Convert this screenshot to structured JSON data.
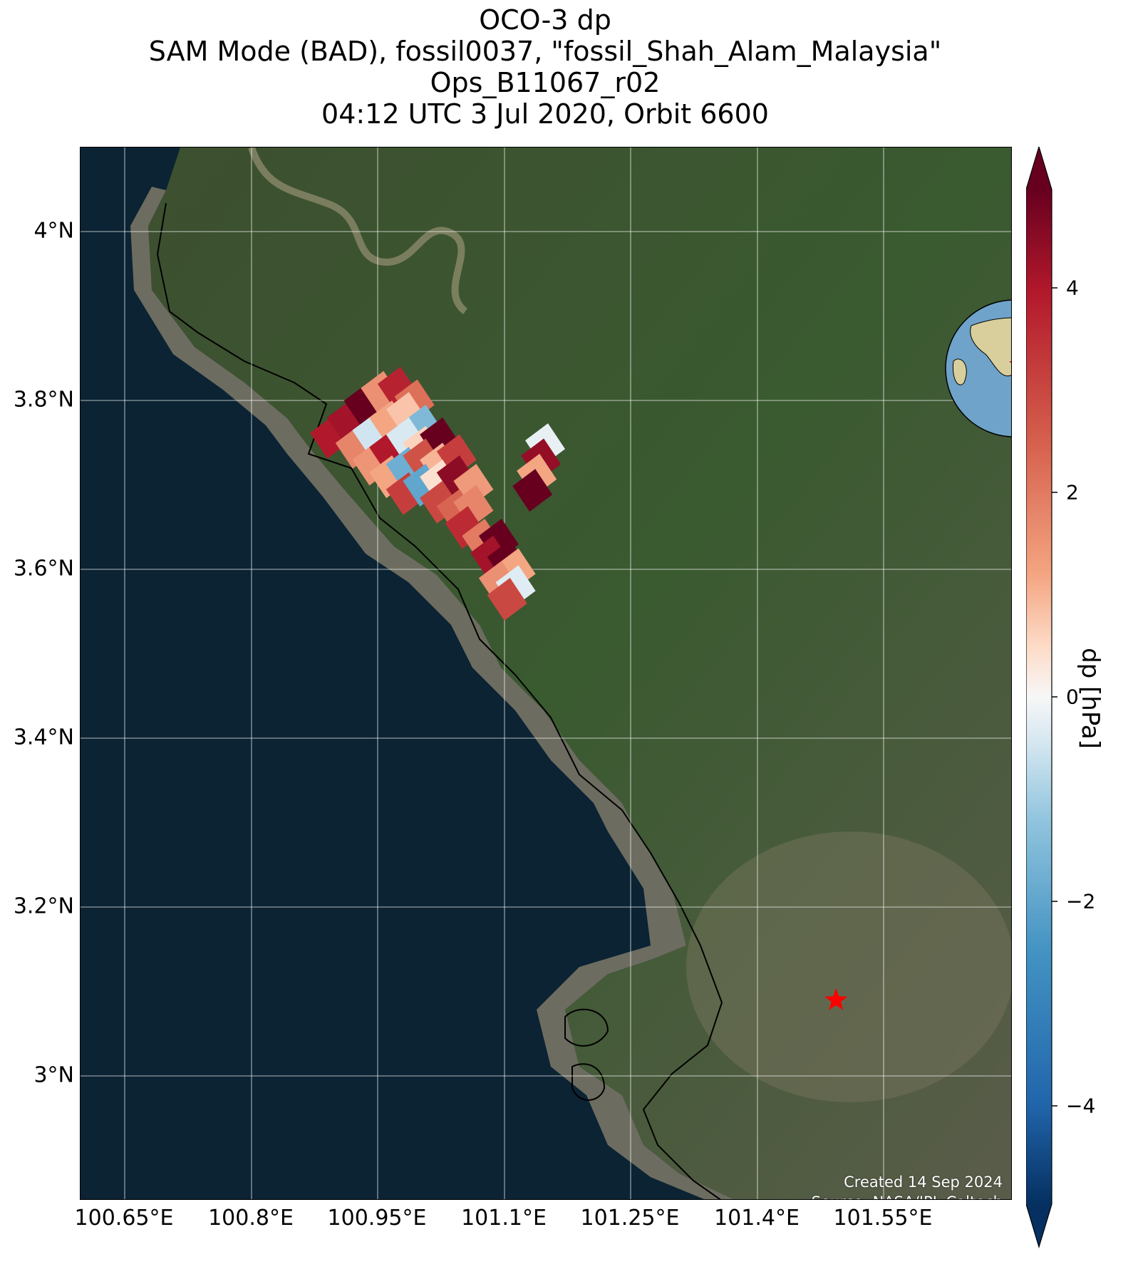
{
  "title": {
    "line1": "OCO-3 dp",
    "line2": "SAM Mode (BAD), fossil0037, \"fossil_Shah_Alam_Malaysia\"",
    "line3": "Ops_B11067_r02",
    "line4": "04:12 UTC 3 Jul 2020, Orbit 6600"
  },
  "map": {
    "lat_ticks": [
      "4°N",
      "3.8°N",
      "3.6°N",
      "3.4°N",
      "3.2°N",
      "3°N"
    ],
    "lon_ticks": [
      "100.65°E",
      "100.8°E",
      "100.95°E",
      "101.1°E",
      "101.25°E",
      "101.4°E",
      "101.55°E"
    ],
    "credit_created": "Created 14 Sep 2024",
    "credit_source": "Source: NASA/JPL-Caltech",
    "target_marker": "red-star",
    "target_location": {
      "lon": 101.49,
      "lat": 3.09
    }
  },
  "colorbar": {
    "label": "dp [hPa]",
    "ticks": [
      "4",
      "2",
      "0",
      "−2",
      "−4"
    ],
    "range": [
      -5,
      5
    ],
    "colormap": "RdBu_r",
    "extend": "both"
  },
  "colors": {
    "ocean": "#0b2333",
    "land": "#3c5230",
    "sediment": "#a89478",
    "target_star": "#ff0000"
  },
  "footprints": [
    {
      "lon": 100.89,
      "lat": 3.757,
      "dp": 4.0
    },
    {
      "lon": 100.91,
      "lat": 3.775,
      "dp": 4.2
    },
    {
      "lon": 100.93,
      "lat": 3.795,
      "dp": 5.0
    },
    {
      "lon": 100.95,
      "lat": 3.81,
      "dp": 1.6
    },
    {
      "lon": 100.97,
      "lat": 3.815,
      "dp": 3.8
    },
    {
      "lon": 100.99,
      "lat": 3.8,
      "dp": 2.2
    },
    {
      "lon": 100.92,
      "lat": 3.745,
      "dp": 1.8
    },
    {
      "lon": 100.94,
      "lat": 3.76,
      "dp": -0.5
    },
    {
      "lon": 100.96,
      "lat": 3.775,
      "dp": 1.2
    },
    {
      "lon": 100.98,
      "lat": 3.785,
      "dp": 0.8
    },
    {
      "lon": 101.0,
      "lat": 3.77,
      "dp": -1.5
    },
    {
      "lon": 100.94,
      "lat": 3.725,
      "dp": 1.5
    },
    {
      "lon": 100.96,
      "lat": 3.74,
      "dp": 4.0
    },
    {
      "lon": 100.98,
      "lat": 3.755,
      "dp": -0.4
    },
    {
      "lon": 101.0,
      "lat": 3.745,
      "dp": 0.6
    },
    {
      "lon": 101.02,
      "lat": 3.755,
      "dp": 5.0
    },
    {
      "lon": 100.96,
      "lat": 3.71,
      "dp": 1.2
    },
    {
      "lon": 100.98,
      "lat": 3.72,
      "dp": -1.8
    },
    {
      "lon": 101.0,
      "lat": 3.73,
      "dp": 2.8
    },
    {
      "lon": 101.02,
      "lat": 3.725,
      "dp": 1.0
    },
    {
      "lon": 101.04,
      "lat": 3.735,
      "dp": 3.2
    },
    {
      "lon": 100.98,
      "lat": 3.69,
      "dp": 3.2
    },
    {
      "lon": 101.0,
      "lat": 3.7,
      "dp": -2.0
    },
    {
      "lon": 101.02,
      "lat": 3.705,
      "dp": 0.4
    },
    {
      "lon": 101.04,
      "lat": 3.71,
      "dp": 4.5
    },
    {
      "lon": 101.06,
      "lat": 3.7,
      "dp": 1.4
    },
    {
      "lon": 101.02,
      "lat": 3.68,
      "dp": 3.0
    },
    {
      "lon": 101.04,
      "lat": 3.67,
      "dp": 2.4
    },
    {
      "lon": 101.06,
      "lat": 3.675,
      "dp": 1.8
    },
    {
      "lon": 101.05,
      "lat": 3.65,
      "dp": 3.6
    },
    {
      "lon": 101.07,
      "lat": 3.635,
      "dp": 2.0
    },
    {
      "lon": 101.09,
      "lat": 3.635,
      "dp": 5.0
    },
    {
      "lon": 101.08,
      "lat": 3.615,
      "dp": 4.2
    },
    {
      "lon": 101.1,
      "lat": 3.61,
      "dp": 5.0
    },
    {
      "lon": 101.11,
      "lat": 3.6,
      "dp": 1.2
    },
    {
      "lon": 101.09,
      "lat": 3.585,
      "dp": 1.6
    },
    {
      "lon": 101.11,
      "lat": 3.58,
      "dp": -0.3
    },
    {
      "lon": 101.1,
      "lat": 3.565,
      "dp": 3.0
    },
    {
      "lon": 101.145,
      "lat": 3.748,
      "dp": -0.2
    },
    {
      "lon": 101.14,
      "lat": 3.73,
      "dp": 4.4
    },
    {
      "lon": 101.135,
      "lat": 3.712,
      "dp": 1.2
    },
    {
      "lon": 101.13,
      "lat": 3.694,
      "dp": 5.0
    }
  ]
}
